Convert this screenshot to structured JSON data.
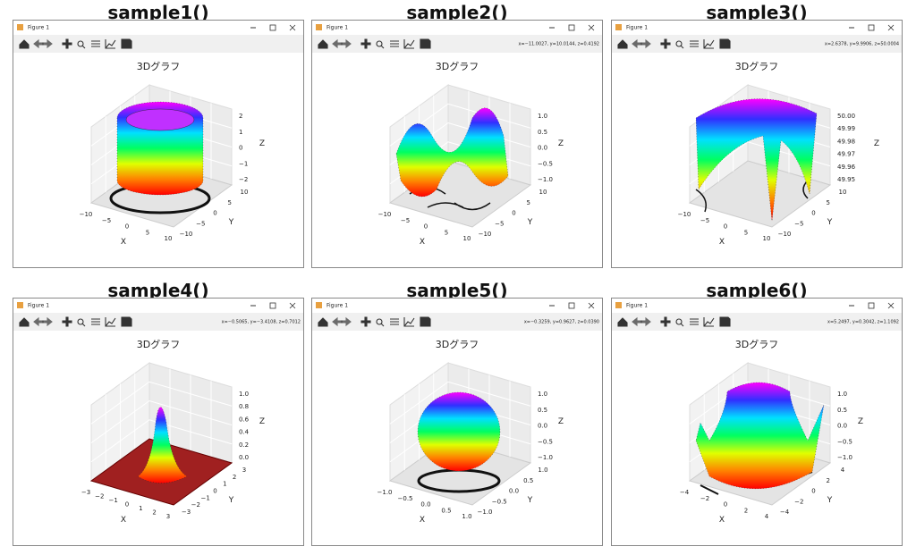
{
  "panels": [
    {
      "heading": "sample1()",
      "window_title": "Figure 1",
      "plot_title": "3Dグラフ",
      "x_label": "X",
      "y_label": "Y",
      "z_label": "Z",
      "x_ticks": [
        "−10",
        "−5",
        "0",
        "5",
        "10"
      ],
      "y_ticks": [
        "10",
        "5",
        "0",
        "−5",
        "−10"
      ],
      "z_ticks": [
        "2",
        "1",
        "0",
        "−1",
        "−2"
      ]
    },
    {
      "heading": "sample2()",
      "window_title": "Figure 1",
      "coordinates": "x=−11.0027, y=10.0144, z=0.4192",
      "plot_title": "3Dグラフ",
      "x_label": "X",
      "y_label": "Y",
      "z_label": "Z",
      "x_ticks": [
        "−10",
        "−5",
        "0",
        "5",
        "10"
      ],
      "y_ticks": [
        "10",
        "5",
        "0",
        "−5",
        "−10"
      ],
      "z_ticks": [
        "1.0",
        "0.5",
        "0.0",
        "−0.5",
        "−1.0"
      ]
    },
    {
      "heading": "sample3()",
      "window_title": "Figure 1",
      "coordinates": "x=2.6378, y=9.9906, z=50.0004",
      "plot_title": "3Dグラフ",
      "x_label": "X",
      "y_label": "Y",
      "z_label": "Z",
      "x_ticks": [
        "−10",
        "−5",
        "0",
        "5",
        "10"
      ],
      "y_ticks": [
        "10",
        "5",
        "0",
        "−5",
        "−10"
      ],
      "z_ticks": [
        "50.00",
        "49.99",
        "49.98",
        "49.97",
        "49.96",
        "49.95"
      ]
    },
    {
      "heading": "sample4()",
      "window_title": "Figure 1",
      "coordinates": "x=−0.5065, y=−3.4108, z=0.7012",
      "plot_title": "3Dグラフ",
      "x_label": "X",
      "y_label": "Y",
      "z_label": "Z",
      "x_ticks": [
        "−3",
        "−2",
        "−1",
        "0",
        "1",
        "2",
        "3"
      ],
      "y_ticks": [
        "3",
        "2",
        "1",
        "0",
        "−1",
        "−2",
        "−3"
      ],
      "z_ticks": [
        "1.0",
        "0.8",
        "0.6",
        "0.4",
        "0.2",
        "0.0"
      ]
    },
    {
      "heading": "sample5()",
      "window_title": "Figure 1",
      "coordinates": "x=−0.3259, y=0.9627, z=0.0390",
      "plot_title": "3Dグラフ",
      "x_label": "X",
      "y_label": "Y",
      "z_label": "Z",
      "x_ticks": [
        "−1.0",
        "−0.5",
        "0.0",
        "0.5",
        "1.0"
      ],
      "y_ticks": [
        "1.0",
        "0.5",
        "0.0",
        "−0.5",
        "−1.0"
      ],
      "z_ticks": [
        "1.0",
        "0.5",
        "0.0",
        "−0.5",
        "−1.0"
      ]
    },
    {
      "heading": "sample6()",
      "window_title": "Figure 1",
      "coordinates": "x=5.2497, y=0.3042, z=1.1092",
      "plot_title": "3Dグラフ",
      "x_label": "X",
      "y_label": "Y",
      "z_label": "Z",
      "x_ticks": [
        "−4",
        "−2",
        "0",
        "2",
        "4"
      ],
      "y_ticks": [
        "4",
        "2",
        "0",
        "−2",
        "−4"
      ],
      "z_ticks": [
        "1.0",
        "0.5",
        "0.0",
        "−0.5",
        "−1.0"
      ]
    }
  ]
}
